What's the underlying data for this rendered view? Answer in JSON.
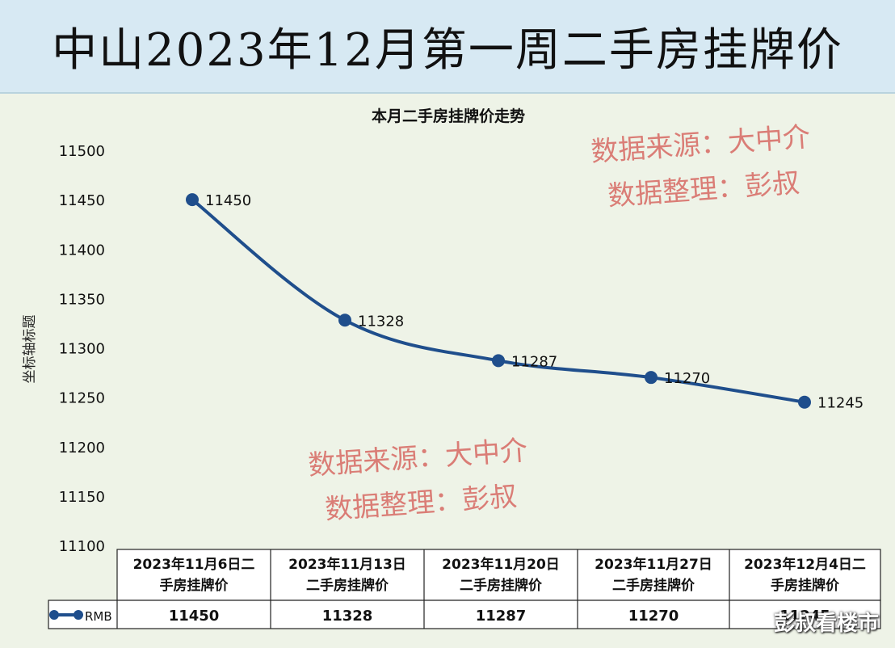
{
  "header": {
    "title": "中山2023年12月第一周二手房挂牌价"
  },
  "chart_data": {
    "type": "line",
    "title": "本月二手房挂牌价走势",
    "ylabel": "坐标轴标题",
    "ylim": [
      11100,
      11500
    ],
    "yticks": [
      11100,
      11150,
      11200,
      11250,
      11300,
      11350,
      11400,
      11450,
      11500
    ],
    "categories": [
      [
        "2023年11月6日二",
        "手房挂牌价"
      ],
      [
        "2023年11月13日",
        "二手房挂牌价"
      ],
      [
        "2023年11月20日",
        "二手房挂牌价"
      ],
      [
        "2023年11月27日",
        "二手房挂牌价"
      ],
      [
        "2023年12月4日二",
        "手房挂牌价"
      ]
    ],
    "series": [
      {
        "name": "RMB",
        "values": [
          11450,
          11328,
          11287,
          11270,
          11245
        ],
        "color": "#1f4e8c"
      }
    ],
    "data_labels": [
      "11450",
      "11328",
      "11287",
      "11270",
      "11245"
    ],
    "table_values": [
      "11450",
      "11328",
      "11287",
      "11270",
      "11245"
    ],
    "grid": false,
    "legend": "data-table"
  },
  "watermarks": [
    {
      "line1": "数据来源：大中介",
      "line2": "数据整理：彭叔"
    },
    {
      "line1": "数据来源：大中介",
      "line2": "数据整理：彭叔"
    }
  ],
  "brand": "彭叔看楼市"
}
